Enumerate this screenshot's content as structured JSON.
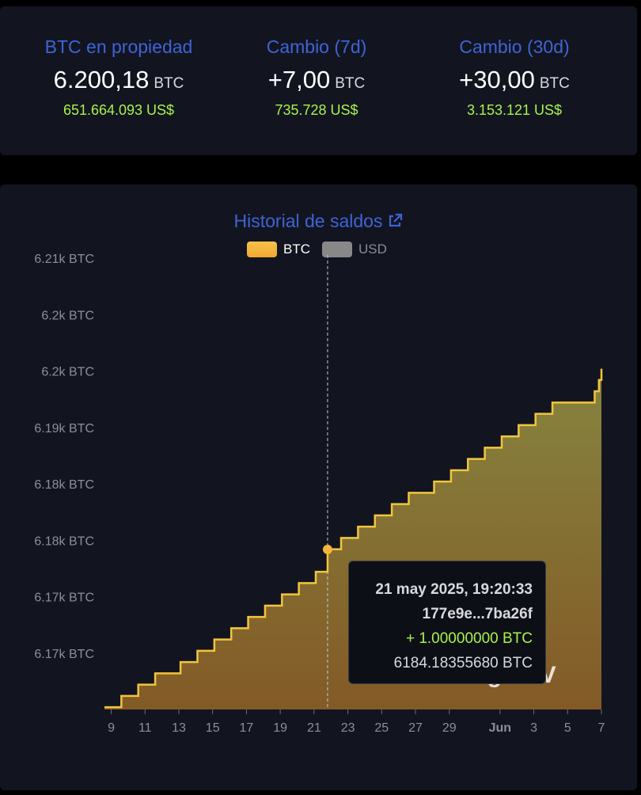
{
  "summary": {
    "owned": {
      "label": "BTC en propiedad",
      "value": "6.200,18",
      "unit": "BTC",
      "usd": "651.664.093 US$"
    },
    "change_7d": {
      "label": "Cambio (7d)",
      "value": "+7,00",
      "unit": "BTC",
      "usd": "735.728 US$"
    },
    "change_30d": {
      "label": "Cambio (30d)",
      "value": "+30,00",
      "unit": "BTC",
      "usd": "3.153.121 US$"
    }
  },
  "chart_title": "Historial de saldos",
  "legend": [
    {
      "label": "BTC",
      "color": "#f5b83d"
    },
    {
      "label": "USD",
      "color": "#888888"
    }
  ],
  "tooltip": {
    "date": "21 may 2025, 19:20:33",
    "tx": "177e9e...7ba26f",
    "delta": "+ 1.00000000 BTC",
    "balance": "6184.18355680 BTC"
  },
  "watermark": "bitcoinlgo.SV",
  "colors": {
    "accent": "#3f63d6",
    "positive": "#a7f24c",
    "line": "#f2c53d"
  },
  "chart_data": {
    "type": "area",
    "title": "Historial de saldos",
    "ylabel": "",
    "xlabel": "",
    "ylim": [
      6170,
      6210
    ],
    "y_tick_labels": [
      "6.21k BTC",
      "6.2k BTC",
      "6.2k BTC",
      "6.19k BTC",
      "6.18k BTC",
      "6.18k BTC",
      "6.17k BTC",
      "6.17k BTC"
    ],
    "y_tick_values": [
      6210,
      6205,
      6200,
      6195,
      6190,
      6185,
      6180,
      6175
    ],
    "x_tick_labels": [
      "9",
      "11",
      "13",
      "15",
      "17",
      "19",
      "21",
      "23",
      "25",
      "27",
      "29",
      "Jun",
      "3",
      "5",
      "7"
    ],
    "x_tick_days": [
      9,
      11,
      13,
      15,
      17,
      19,
      21,
      23,
      25,
      27,
      29,
      32,
      34,
      36,
      38
    ],
    "x_range_days": [
      8.6,
      38
    ],
    "series": [
      {
        "name": "BTC",
        "steps": [
          {
            "day": 8.6,
            "value": 6170.2
          },
          {
            "day": 9.6,
            "value": 6171.2
          },
          {
            "day": 10.6,
            "value": 6172.2
          },
          {
            "day": 11.6,
            "value": 6173.2
          },
          {
            "day": 13.1,
            "value": 6174.2
          },
          {
            "day": 14.1,
            "value": 6175.2
          },
          {
            "day": 15.1,
            "value": 6176.2
          },
          {
            "day": 16.1,
            "value": 6177.2
          },
          {
            "day": 17.1,
            "value": 6178.2
          },
          {
            "day": 18.1,
            "value": 6179.2
          },
          {
            "day": 19.1,
            "value": 6180.2
          },
          {
            "day": 20.1,
            "value": 6181.2
          },
          {
            "day": 21.1,
            "value": 6182.2
          },
          {
            "day": 21.8,
            "value": 6184.2
          },
          {
            "day": 22.6,
            "value": 6185.2
          },
          {
            "day": 23.6,
            "value": 6186.2
          },
          {
            "day": 24.6,
            "value": 6187.2
          },
          {
            "day": 25.6,
            "value": 6188.2
          },
          {
            "day": 26.6,
            "value": 6189.2
          },
          {
            "day": 28.1,
            "value": 6190.2
          },
          {
            "day": 29.1,
            "value": 6191.2
          },
          {
            "day": 30.1,
            "value": 6192.2
          },
          {
            "day": 31.1,
            "value": 6193.2
          },
          {
            "day": 32.1,
            "value": 6194.2
          },
          {
            "day": 33.1,
            "value": 6195.2
          },
          {
            "day": 34.1,
            "value": 6196.2
          },
          {
            "day": 35.1,
            "value": 6197.2
          },
          {
            "day": 37.6,
            "value": 6198.2
          },
          {
            "day": 37.85,
            "value": 6199.2
          }
        ],
        "end_day": 38,
        "end_value": 6200.2
      }
    ],
    "highlight": {
      "day": 21.8,
      "value": 6184.18
    },
    "grid": false,
    "legend_position": "top-center"
  }
}
